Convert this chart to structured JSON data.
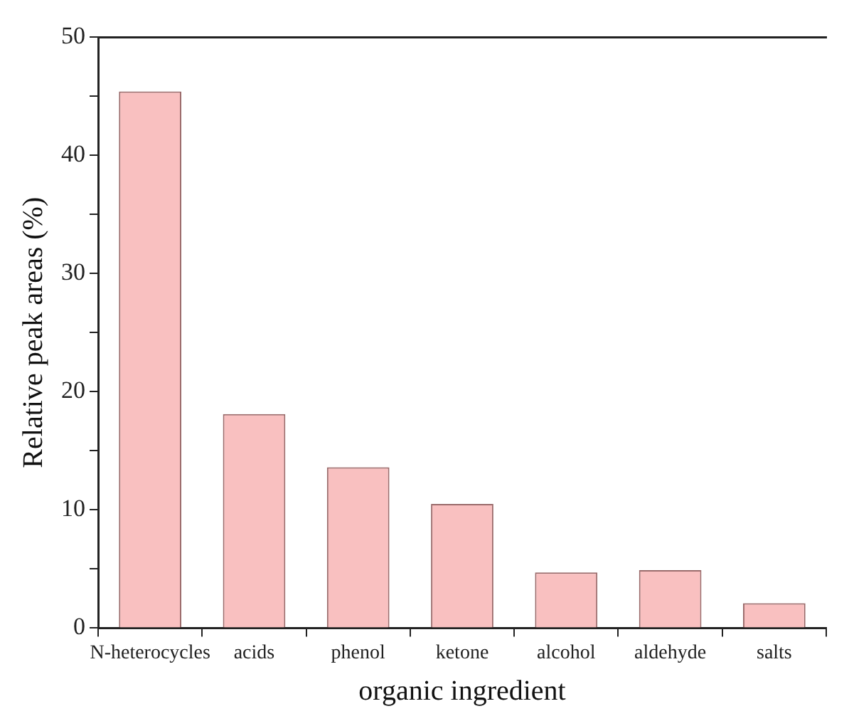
{
  "chart_data": {
    "type": "bar",
    "xlabel": "organic ingredient",
    "ylabel": "Relative peak areas (%)",
    "categories": [
      "N-heterocycles",
      "acids",
      "phenol",
      "ketone",
      "alcohol",
      "aldehyde",
      "salts"
    ],
    "values": [
      45.4,
      18.1,
      13.6,
      10.5,
      4.7,
      4.9,
      2.1
    ],
    "color": "#f9c0c0",
    "ylim": [
      0,
      50
    ],
    "yticks": [
      0,
      {
        "value": 5,
        "label": null
      },
      10,
      {
        "value": 15,
        "label": null
      },
      20,
      {
        "value": 25,
        "label": null
      },
      30,
      {
        "value": 35,
        "label": null
      },
      40,
      {
        "value": 45,
        "label": null
      },
      50
    ],
    "grid": false,
    "legend": false
  }
}
